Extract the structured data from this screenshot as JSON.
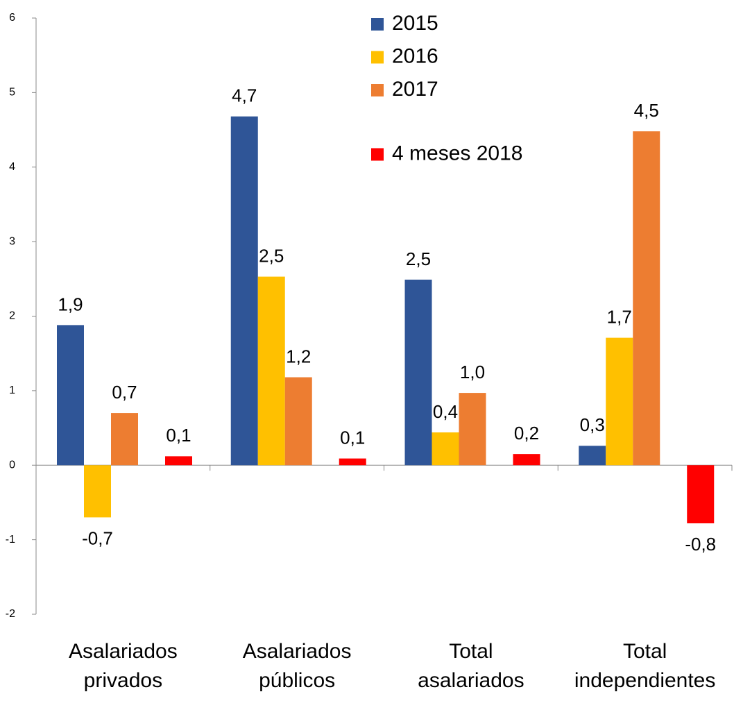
{
  "chart_data": {
    "type": "bar",
    "categories": [
      [
        "Asalariados",
        "privados"
      ],
      [
        "Asalariados",
        "públicos"
      ],
      [
        "Total",
        "asalariados"
      ],
      [
        "Total",
        "independientes"
      ]
    ],
    "series": [
      {
        "name": "2015",
        "color": "#2f5597",
        "values": [
          1.88,
          4.68,
          2.49,
          0.26
        ],
        "value_labels": [
          "1,9",
          "4,7",
          "2,5",
          "0,3"
        ]
      },
      {
        "name": "2016",
        "color": "#ffc000",
        "values": [
          -0.7,
          2.53,
          0.44,
          1.71
        ],
        "value_labels": [
          "-0,7",
          "2,5",
          "0,4",
          "1,7"
        ]
      },
      {
        "name": "2017",
        "color": "#ed7d31",
        "values": [
          0.7,
          1.18,
          0.97,
          4.48
        ],
        "value_labels": [
          "0,7",
          "1,2",
          "1,0",
          "4,5"
        ]
      },
      {
        "name": "4 meses 2018",
        "color": "#ff0000",
        "values": [
          0.12,
          0.09,
          0.15,
          -0.78
        ],
        "value_labels": [
          "0,1",
          "0,1",
          "0,2",
          "-0,8"
        ]
      }
    ],
    "ylim": [
      -2,
      6
    ],
    "yticks": [
      -2,
      -1,
      0,
      1,
      2,
      3,
      4,
      5,
      6
    ],
    "grid": false
  }
}
